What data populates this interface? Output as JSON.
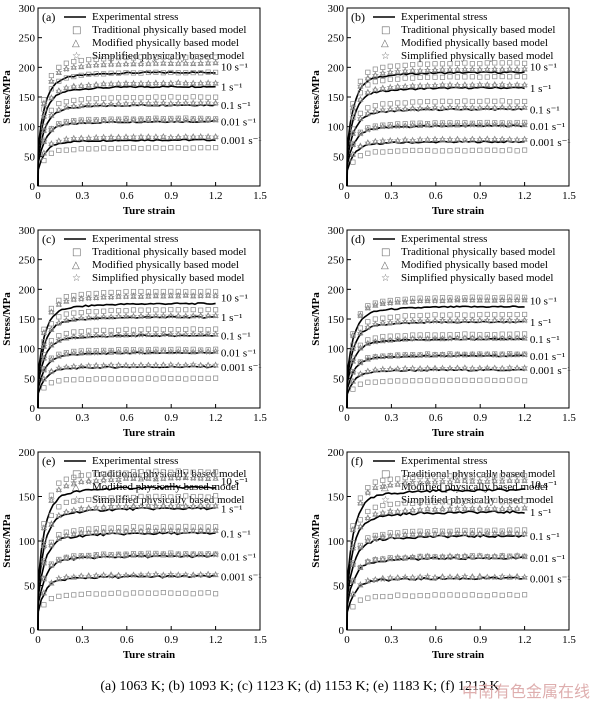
{
  "caption": "(a) 1063 K; (b) 1093 K; (c) 1123 K; (d) 1153 K; (e) 1183 K; (f) 1213 K",
  "watermark": "中南有色金属在线",
  "chart_data": [
    {
      "type": "line",
      "panel": "(a)",
      "xlabel": "Ture strain",
      "ylabel": "Stress/MPa",
      "xlim": [
        0,
        1.5
      ],
      "ylim": [
        0,
        300
      ],
      "xticks": [
        "0",
        "0.3",
        "0.6",
        "0.9",
        "1.2",
        "1.5"
      ],
      "yticks": [
        "0",
        "50",
        "100",
        "150",
        "200",
        "250",
        "300"
      ],
      "legend": [
        "Experimental stress",
        "Traditional physically based model",
        "Modified physically based model",
        "Simplified physically based model"
      ],
      "strain_rates": [
        "10 s⁻¹",
        "1 s⁻¹",
        "0.1 s⁻¹",
        "0.01 s⁻¹",
        "0.001 s⁻¹"
      ],
      "series": [
        {
          "name": "10 s⁻¹",
          "experimental": 185,
          "traditional": 210,
          "modified": 200,
          "simplified": 200
        },
        {
          "name": "1 s⁻¹",
          "experimental": 162,
          "traditional": 185,
          "modified": 168,
          "simplified": 168
        },
        {
          "name": "0.1 s⁻¹",
          "experimental": 132,
          "traditional": 145,
          "modified": 135,
          "simplified": 135
        },
        {
          "name": "0.01 s⁻¹",
          "experimental": 105,
          "traditional": 110,
          "modified": 108,
          "simplified": 108
        },
        {
          "name": "0.001 s⁻¹",
          "experimental": 75,
          "traditional": 62,
          "modified": 80,
          "simplified": 80
        }
      ]
    },
    {
      "type": "line",
      "panel": "(b)",
      "xlabel": "Ture strain",
      "ylabel": "Stress/MPa",
      "xlim": [
        0,
        1.5
      ],
      "ylim": [
        0,
        300
      ],
      "xticks": [
        "0",
        "0.3",
        "0.6",
        "0.9",
        "1.2",
        "1.5"
      ],
      "yticks": [
        "0",
        "50",
        "100",
        "150",
        "200",
        "250",
        "300"
      ],
      "legend": [
        "Experimental stress",
        "Traditional physically based model",
        "Modified physically based model",
        "Simplified physically based model"
      ],
      "strain_rates": [
        "10 s⁻¹",
        "1 s⁻¹",
        "0.1 s⁻¹",
        "0.01 s⁻¹",
        "0.001 s⁻¹"
      ],
      "series": [
        {
          "name": "10 s⁻¹",
          "experimental": 185,
          "traditional": 200,
          "modified": 190,
          "simplified": 190
        },
        {
          "name": "1 s⁻¹",
          "experimental": 160,
          "traditional": 178,
          "modified": 165,
          "simplified": 165
        },
        {
          "name": "0.1 s⁻¹",
          "experimental": 125,
          "traditional": 138,
          "modified": 128,
          "simplified": 128
        },
        {
          "name": "0.01 s⁻¹",
          "experimental": 98,
          "traditional": 103,
          "modified": 100,
          "simplified": 100
        },
        {
          "name": "0.001 s⁻¹",
          "experimental": 72,
          "traditional": 58,
          "modified": 76,
          "simplified": 76
        }
      ]
    },
    {
      "type": "line",
      "panel": "(c)",
      "xlabel": "Ture strain",
      "ylabel": "Stress/MPa",
      "xlim": [
        0,
        1.5
      ],
      "ylim": [
        0,
        300
      ],
      "xticks": [
        "0",
        "0.3",
        "0.6",
        "0.9",
        "1.2",
        "1.5"
      ],
      "yticks": [
        "0",
        "50",
        "100",
        "150",
        "200",
        "250",
        "300"
      ],
      "legend": [
        "Experimental stress",
        "Traditional physically based model",
        "Modified physically based model",
        "Simplified physically based model"
      ],
      "strain_rates": [
        "10 s⁻¹",
        "1 s⁻¹",
        "0.1 s⁻¹",
        "0.01 s⁻¹",
        "0.001 s⁻¹"
      ],
      "series": [
        {
          "name": "10 s⁻¹",
          "experimental": 170,
          "traditional": 190,
          "modified": 183,
          "simplified": 183
        },
        {
          "name": "1 s⁻¹",
          "experimental": 148,
          "traditional": 160,
          "modified": 150,
          "simplified": 150
        },
        {
          "name": "0.1 s⁻¹",
          "experimental": 118,
          "traditional": 128,
          "modified": 120,
          "simplified": 120
        },
        {
          "name": "0.01 s⁻¹",
          "experimental": 90,
          "traditional": 95,
          "modified": 92,
          "simplified": 92
        },
        {
          "name": "0.001 s⁻¹",
          "experimental": 67,
          "traditional": 48,
          "modified": 70,
          "simplified": 70
        }
      ]
    },
    {
      "type": "line",
      "panel": "(d)",
      "xlabel": "Ture strain",
      "ylabel": "Stress/MPa",
      "xlim": [
        0,
        1.5
      ],
      "ylim": [
        0,
        300
      ],
      "xticks": [
        "0",
        "0.3",
        "0.6",
        "0.9",
        "1.2",
        "1.5"
      ],
      "yticks": [
        "0",
        "50",
        "100",
        "150",
        "200",
        "250",
        "300"
      ],
      "legend": [
        "Experimental stress",
        "Traditional physically based model",
        "Modified physically based model",
        "Simplified physically based model"
      ],
      "strain_rates": [
        "10 s⁻¹",
        "1 s⁻¹",
        "0.1 s⁻¹",
        "0.01 s⁻¹",
        "0.001 s⁻¹"
      ],
      "series": [
        {
          "name": "10 s⁻¹",
          "experimental": 165,
          "traditional": 180,
          "modified": 176,
          "simplified": 176
        },
        {
          "name": "1 s⁻¹",
          "experimental": 140,
          "traditional": 152,
          "modified": 143,
          "simplified": 143
        },
        {
          "name": "0.1 s⁻¹",
          "experimental": 112,
          "traditional": 120,
          "modified": 114,
          "simplified": 114
        },
        {
          "name": "0.01 s⁻¹",
          "experimental": 85,
          "traditional": 88,
          "modified": 87,
          "simplified": 87
        },
        {
          "name": "0.001 s⁻¹",
          "experimental": 62,
          "traditional": 45,
          "modified": 65,
          "simplified": 65
        }
      ]
    },
    {
      "type": "line",
      "panel": "(e)",
      "xlabel": "Ture strain",
      "ylabel": "Stress/MPa",
      "xlim": [
        0,
        1.5
      ],
      "ylim": [
        0,
        200
      ],
      "xticks": [
        "0",
        "0.3",
        "0.6",
        "0.9",
        "1.2",
        "1.5"
      ],
      "yticks": [
        "0",
        "50",
        "100",
        "150",
        "200"
      ],
      "legend": [
        "Experimental stress",
        "Traditional physically based model",
        "Modified physically based model",
        "Simplified physically based model"
      ],
      "strain_rates": [
        "10 s⁻¹",
        "1 s⁻¹",
        "0.1 s⁻¹",
        "0.01 s⁻¹",
        "0.001 s⁻¹"
      ],
      "series": [
        {
          "name": "10 s⁻¹",
          "experimental": 155,
          "traditional": 172,
          "modified": 165,
          "simplified": 165
        },
        {
          "name": "1 s⁻¹",
          "experimental": 132,
          "traditional": 145,
          "modified": 135,
          "simplified": 135
        },
        {
          "name": "0.1 s⁻¹",
          "experimental": 105,
          "traditional": 112,
          "modified": 108,
          "simplified": 108
        },
        {
          "name": "0.01 s⁻¹",
          "experimental": 80,
          "traditional": 83,
          "modified": 82,
          "simplified": 82
        },
        {
          "name": "0.001 s⁻¹",
          "experimental": 58,
          "traditional": 40,
          "modified": 60,
          "simplified": 60
        }
      ]
    },
    {
      "type": "line",
      "panel": "(f)",
      "xlabel": "Ture strain",
      "ylabel": "Stress/MPa",
      "xlim": [
        0,
        1.5
      ],
      "ylim": [
        0,
        200
      ],
      "xticks": [
        "0",
        "0.3",
        "0.6",
        "0.9",
        "1.2",
        "1.5"
      ],
      "yticks": [
        "0",
        "50",
        "100",
        "150",
        "200"
      ],
      "legend": [
        "Experimental stress",
        "Traditional physically based model",
        "Modified physically based model",
        "Simplified physically based model"
      ],
      "strain_rates": [
        "10 s⁻¹",
        "1 s⁻¹",
        "0.1 s⁻¹",
        "0.01 s⁻¹",
        "0.001 s⁻¹"
      ],
      "series": [
        {
          "name": "10 s⁻¹",
          "experimental": 152,
          "traditional": 168,
          "modified": 162,
          "simplified": 162
        },
        {
          "name": "1 s⁻¹",
          "experimental": 128,
          "traditional": 140,
          "modified": 132,
          "simplified": 132
        },
        {
          "name": "0.1 s⁻¹",
          "experimental": 102,
          "traditional": 108,
          "modified": 105,
          "simplified": 105
        },
        {
          "name": "0.01 s⁻¹",
          "experimental": 78,
          "traditional": 80,
          "modified": 80,
          "simplified": 80
        },
        {
          "name": "0.001 s⁻¹",
          "experimental": 56,
          "traditional": 38,
          "modified": 58,
          "simplified": 58
        }
      ]
    }
  ]
}
